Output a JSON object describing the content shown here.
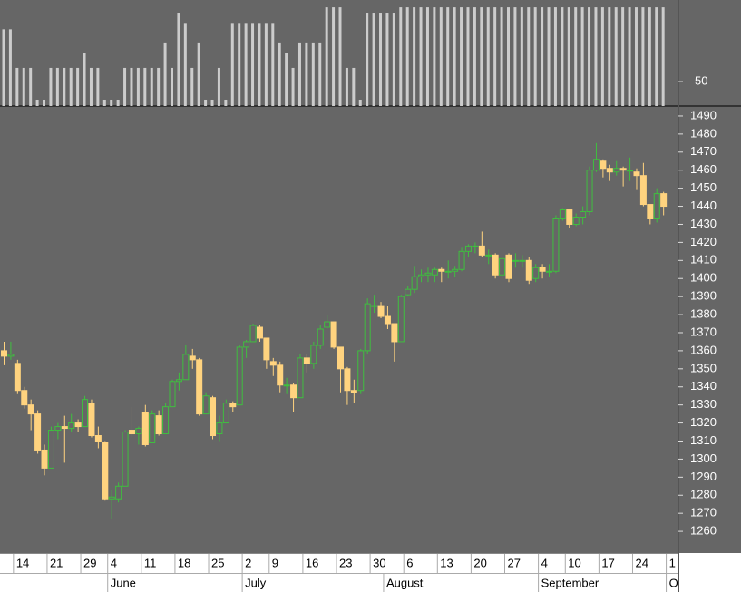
{
  "chart_data": {
    "type": "candlestick",
    "open": [
      1360,
      1357,
      1353,
      1338,
      1330,
      1325,
      1305,
      1295,
      1316,
      1318,
      1317,
      1320,
      1318,
      1331,
      1313,
      1309,
      1278,
      1278,
      1285,
      1316,
      1314,
      1326,
      1309,
      1324,
      1314,
      1329,
      1343,
      1344,
      1357,
      1355,
      1325,
      1334,
      1314,
      1320,
      1331,
      1330,
      1362,
      1365,
      1373,
      1367,
      1354,
      1352,
      1341,
      1341,
      1334,
      1356,
      1353,
      1363,
      1373,
      1376,
      1362,
      1350,
      1338,
      1338,
      1360,
      1385,
      1385,
      1379,
      1375,
      1365,
      1391,
      1394,
      1401,
      1402,
      1402,
      1405,
      1404,
      1404,
      1405,
      1415,
      1418,
      1418,
      1413,
      1413,
      1402,
      1413,
      1410,
      1410,
      1410,
      1400,
      1406,
      1404,
      1404,
      1433,
      1438,
      1430,
      1434,
      1437,
      1460,
      1465,
      1461,
      1459,
      1461,
      1460,
      1459,
      1457,
      1441,
      1433,
      1447
    ],
    "high": [
      1365,
      1365,
      1355,
      1340,
      1333,
      1327,
      1308,
      1318,
      1320,
      1324,
      1325,
      1322,
      1335,
      1333,
      1318,
      1310,
      1283,
      1287,
      1316,
      1329,
      1318,
      1330,
      1327,
      1327,
      1331,
      1344,
      1348,
      1363,
      1361,
      1356,
      1337,
      1335,
      1324,
      1333,
      1332,
      1363,
      1366,
      1375,
      1374,
      1367,
      1356,
      1354,
      1345,
      1342,
      1358,
      1358,
      1365,
      1374,
      1380,
      1376,
      1362,
      1351,
      1344,
      1361,
      1389,
      1391,
      1387,
      1385,
      1375,
      1391,
      1396,
      1407,
      1405,
      1406,
      1406,
      1406,
      1410,
      1407,
      1417,
      1419,
      1420,
      1426,
      1416,
      1414,
      1412,
      1414,
      1414,
      1413,
      1412,
      1408,
      1408,
      1408,
      1435,
      1439,
      1438,
      1436,
      1440,
      1462,
      1475,
      1466,
      1463,
      1465,
      1462,
      1467,
      1461,
      1464,
      1441,
      1450,
      1448
    ],
    "low": [
      1352,
      1355,
      1336,
      1328,
      1316,
      1303,
      1291,
      1295,
      1311,
      1298,
      1315,
      1315,
      1318,
      1312,
      1306,
      1277,
      1267,
      1276,
      1285,
      1312,
      1308,
      1307,
      1309,
      1313,
      1314,
      1329,
      1338,
      1344,
      1350,
      1324,
      1325,
      1311,
      1310,
      1320,
      1326,
      1330,
      1356,
      1365,
      1365,
      1350,
      1346,
      1337,
      1336,
      1326,
      1334,
      1348,
      1350,
      1361,
      1372,
      1361,
      1337,
      1330,
      1331,
      1336,
      1358,
      1381,
      1378,
      1372,
      1354,
      1365,
      1390,
      1392,
      1398,
      1398,
      1398,
      1398,
      1400,
      1401,
      1404,
      1412,
      1414,
      1412,
      1408,
      1400,
      1400,
      1398,
      1406,
      1406,
      1397,
      1398,
      1400,
      1401,
      1403,
      1432,
      1428,
      1429,
      1430,
      1435,
      1459,
      1456,
      1454,
      1457,
      1451,
      1454,
      1449,
      1440,
      1430,
      1431,
      1435
    ],
    "close": [
      1357,
      1358,
      1338,
      1330,
      1325,
      1305,
      1295,
      1316,
      1318,
      1317,
      1320,
      1318,
      1333,
      1313,
      1310,
      1278,
      1279,
      1285,
      1315,
      1314,
      1317,
      1308,
      1325,
      1314,
      1329,
      1343,
      1344,
      1358,
      1355,
      1325,
      1335,
      1313,
      1320,
      1331,
      1329,
      1362,
      1365,
      1374,
      1367,
      1355,
      1352,
      1341,
      1341,
      1334,
      1356,
      1353,
      1363,
      1372,
      1376,
      1362,
      1350,
      1338,
      1337,
      1360,
      1386,
      1385,
      1379,
      1375,
      1365,
      1390,
      1394,
      1401,
      1402,
      1403,
      1405,
      1404,
      1404,
      1405,
      1415,
      1418,
      1418,
      1413,
      1413,
      1402,
      1411,
      1400,
      1410,
      1410,
      1399,
      1406,
      1404,
      1404,
      1433,
      1438,
      1430,
      1434,
      1437,
      1460,
      1466,
      1461,
      1459,
      1461,
      1460,
      1460,
      1457,
      1441,
      1433,
      1447,
      1440
    ],
    "up_color": "#3fbf3f",
    "down_color": "#ffd37f",
    "ylim": [
      1249,
      1495.5
    ],
    "yticks": [
      1260,
      1270,
      1280,
      1290,
      1300,
      1310,
      1320,
      1330,
      1340,
      1350,
      1360,
      1370,
      1380,
      1390,
      1400,
      1410,
      1420,
      1430,
      1440,
      1450,
      1460,
      1470,
      1480,
      1490
    ],
    "xticks": [
      {
        "value": 2,
        "label": "14"
      },
      {
        "value": 7,
        "label": "21"
      },
      {
        "value": 12,
        "label": "29"
      },
      {
        "value": 16,
        "label": "4"
      },
      {
        "value": 21,
        "label": "11"
      },
      {
        "value": 26,
        "label": "18"
      },
      {
        "value": 31,
        "label": "25"
      },
      {
        "value": 36,
        "label": "2"
      },
      {
        "value": 40,
        "label": "9"
      },
      {
        "value": 45,
        "label": "16"
      },
      {
        "value": 50,
        "label": "23"
      },
      {
        "value": 55,
        "label": "30"
      },
      {
        "value": 60,
        "label": "6"
      },
      {
        "value": 65,
        "label": "13"
      },
      {
        "value": 70,
        "label": "20"
      },
      {
        "value": 75,
        "label": "27"
      },
      {
        "value": 80,
        "label": "4"
      },
      {
        "value": 84,
        "label": "10"
      },
      {
        "value": 89,
        "label": "17"
      },
      {
        "value": 94,
        "label": "24"
      },
      {
        "value": 99,
        "label": "1"
      }
    ],
    "month_ticks": [
      {
        "value": 16,
        "label": "June"
      },
      {
        "value": 36,
        "label": "July"
      },
      {
        "value": 57,
        "label": "August"
      },
      {
        "value": 80,
        "label": "September"
      },
      {
        "value": 99,
        "label": "O"
      }
    ],
    "indicator": {
      "type": "bar",
      "color": "#cccccc",
      "ylim": [
        0,
        217
      ],
      "yticks": [
        50
      ],
      "values": [
        157,
        157,
        78,
        78,
        78,
        13,
        13,
        78,
        78,
        78,
        78,
        78,
        109,
        78,
        78,
        13,
        13,
        13,
        78,
        78,
        78,
        78,
        78,
        78,
        130,
        78,
        191,
        170,
        78,
        130,
        13,
        13,
        78,
        13,
        170,
        170,
        170,
        170,
        170,
        170,
        170,
        130,
        109,
        78,
        130,
        130,
        130,
        130,
        202,
        202,
        202,
        78,
        78,
        13,
        191,
        191,
        191,
        191,
        191,
        202,
        202,
        202,
        202,
        202,
        202,
        202,
        202,
        202,
        202,
        202,
        202,
        202,
        202,
        202,
        202,
        202,
        202,
        202,
        202,
        202,
        202,
        202,
        202,
        202,
        202,
        202,
        202,
        202,
        202,
        202,
        202,
        202,
        202,
        202,
        202,
        202,
        202,
        202,
        202
      ]
    }
  }
}
